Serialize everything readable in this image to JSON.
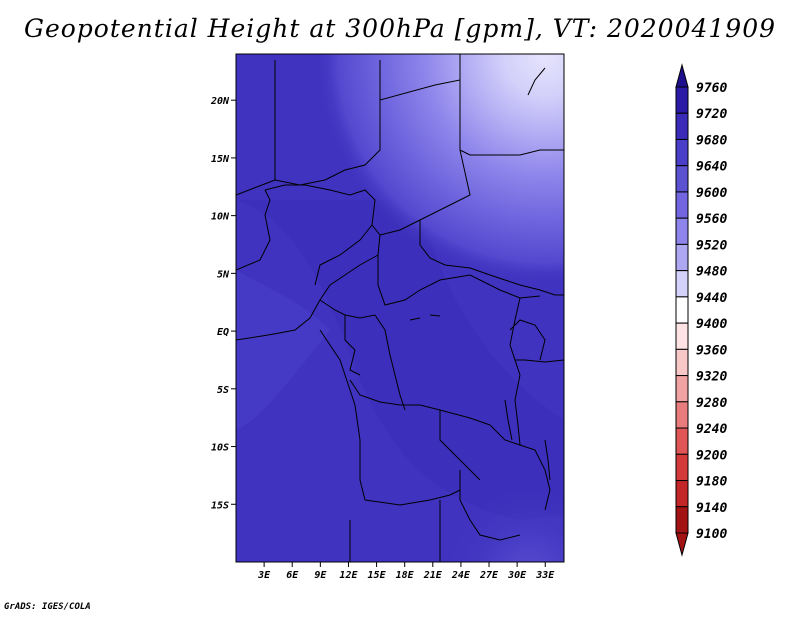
{
  "title": "Geopotential Height at 300hPa [gpm], VT: 2020041909",
  "credit": "GrADS: IGES/COLA",
  "map": {
    "lon_range": [
      0,
      35
    ],
    "lat_range": [
      -20,
      24
    ],
    "x_ticks": [
      "3E",
      "6E",
      "9E",
      "12E",
      "15E",
      "18E",
      "21E",
      "24E",
      "27E",
      "30E",
      "33E"
    ],
    "x_tick_values": [
      3,
      6,
      9,
      12,
      15,
      18,
      21,
      24,
      27,
      30,
      33
    ],
    "y_ticks": [
      "20N",
      "15N",
      "10N",
      "5N",
      "EQ",
      "5S",
      "10S",
      "15S"
    ],
    "y_tick_values": [
      20,
      15,
      10,
      5,
      0,
      -5,
      -10,
      -15
    ]
  },
  "colorbar": {
    "levels": [
      "9760",
      "9720",
      "9680",
      "9640",
      "9600",
      "9560",
      "9520",
      "9480",
      "9440",
      "9400",
      "9360",
      "9320",
      "9280",
      "9240",
      "9200",
      "9180",
      "9140",
      "9100"
    ],
    "colors": [
      "#1e0f8c",
      "#2a1aa6",
      "#3a2cb8",
      "#4a3fc8",
      "#5b52d2",
      "#7166e0",
      "#8d85eb",
      "#aea8f3",
      "#d4d1fa",
      "#ffffff",
      "#fde3e3",
      "#f8c7c7",
      "#f1a3a3",
      "#e87c7c",
      "#e05656",
      "#d43a3a",
      "#c22626",
      "#a31313"
    ]
  }
}
